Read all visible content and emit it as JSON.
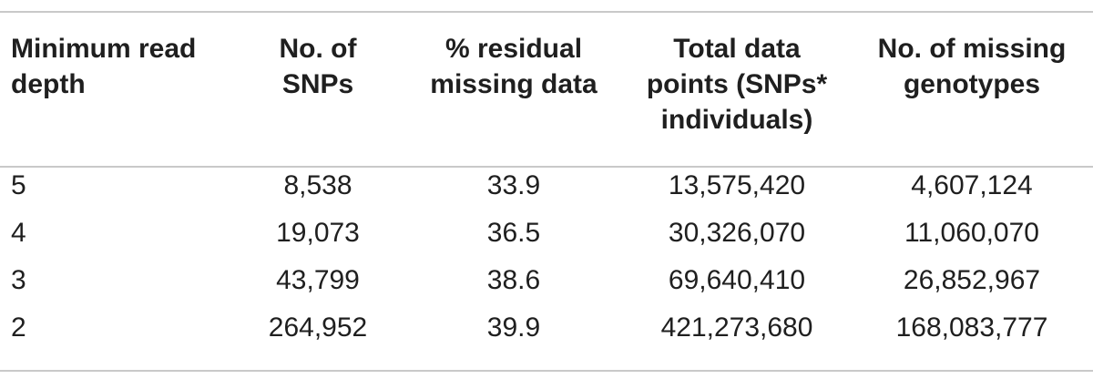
{
  "table": {
    "headers": [
      "Minimum read depth",
      "No. of SNPs",
      "% residual missing data",
      "Total data points (SNPs* individuals)",
      "No. of missing genotypes"
    ],
    "header_lines": [
      [
        "Minimum read",
        "depth"
      ],
      [
        "No. of",
        "SNPs"
      ],
      [
        "% residual",
        "missing data"
      ],
      [
        "Total data",
        "points (SNPs*",
        "individuals)"
      ],
      [
        "No. of missing",
        "genotypes"
      ]
    ],
    "rows": [
      [
        "5",
        "8,538",
        "33.9",
        "13,575,420",
        "4,607,124"
      ],
      [
        "4",
        "19,073",
        "36.5",
        "30,326,070",
        "11,060,070"
      ],
      [
        "3",
        "43,799",
        "38.6",
        "69,640,410",
        "26,852,967"
      ],
      [
        "2",
        "264,952",
        "39.9",
        "421,273,680",
        "168,083,777"
      ]
    ]
  }
}
